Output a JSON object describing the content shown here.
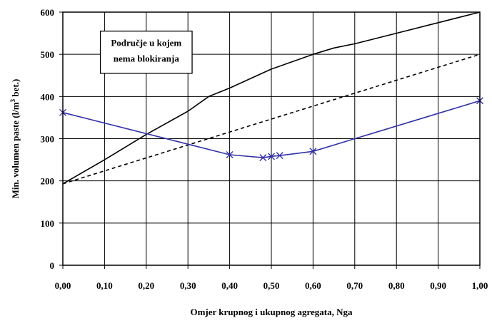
{
  "chart_data": {
    "type": "line",
    "title": "",
    "xlabel": "Omjer krupnog i ukupnog agregata, Nga",
    "ylabel": "Min. volumen paste (l/m³ bet.)",
    "ylabel_parts": {
      "main": "Min. volumen paste (l/m",
      "superscript": "3",
      "tail": " bet.)"
    },
    "xlim": [
      0,
      1
    ],
    "ylim": [
      0,
      600
    ],
    "grid": true,
    "x_ticks": [
      0,
      0.1,
      0.2,
      0.3,
      0.4,
      0.5,
      0.6,
      0.7,
      0.8,
      0.9,
      1.0
    ],
    "x_tick_labels": [
      "0,00",
      "0,10",
      "0,20",
      "0,30",
      "0,40",
      "0,50",
      "0,60",
      "0,70",
      "0,80",
      "0,90",
      "1,00"
    ],
    "y_ticks": [
      0,
      100,
      200,
      300,
      400,
      500,
      600
    ],
    "y_tick_labels": [
      "0",
      "100",
      "200",
      "300",
      "400",
      "500",
      "600"
    ],
    "annotation": {
      "lines": [
        "Područje u kojem",
        "nema blokiranja"
      ]
    },
    "series": [
      {
        "color": "#000000",
        "style": "solid",
        "marker": "none",
        "x": [
          0.0,
          0.1,
          0.2,
          0.3,
          0.35,
          0.4,
          0.5,
          0.6,
          0.65,
          0.7,
          0.8,
          0.9,
          1.0
        ],
        "y": [
          193,
          250,
          310,
          365,
          400,
          420,
          465,
          500,
          515,
          525,
          550,
          575,
          600
        ]
      },
      {
        "color": "#000000",
        "style": "dashed",
        "marker": "none",
        "x": [
          0.0,
          1.0
        ],
        "y": [
          193,
          500
        ]
      },
      {
        "color": "#3333aa",
        "style": "solid",
        "marker": "x",
        "x": [
          0.0,
          0.4,
          0.48,
          0.5,
          0.52,
          0.6,
          1.0
        ],
        "y": [
          362,
          262,
          255,
          258,
          260,
          270,
          390
        ]
      }
    ]
  }
}
